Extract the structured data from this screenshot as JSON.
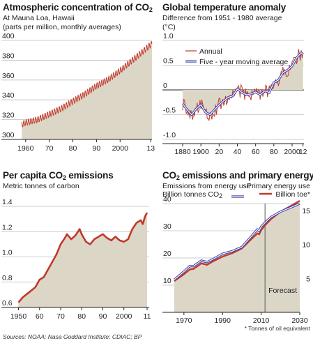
{
  "panels": {
    "co2": {
      "title": "Atmospheric concentration of CO",
      "title_sub": "2",
      "subtitle1": "At Mauna Loa, Hawaii",
      "subtitle2": "(parts per million, monthly averages)"
    },
    "temp": {
      "title": "Global temperature anomaly",
      "subtitle1": "Difference from 1951 - 1980 average",
      "subtitle2": "(°C)"
    },
    "percap": {
      "title_pre": "Per capita CO",
      "title_sub": "2",
      "title_post": " emissions",
      "subtitle1": "Metric tonnes of carbon"
    },
    "energy": {
      "title_pre": "CO",
      "title_sub": "2",
      "title_post": " emissions and primary energy",
      "left_label1": "Emissions from energy use",
      "left_label2": "Billion tonnes CO",
      "left_label2_sub": "2",
      "right_label1": "Primary energy use",
      "right_label2": "Billion toe*",
      "forecast_label": "Forecast",
      "footnote": "* Tonnes of oil equivalent"
    }
  },
  "footer": "Sources: NOAA; Nasa Goddard Institute; CDIAC; BP",
  "colors": {
    "red": "#c0392b",
    "blue": "#3a3fa8",
    "area": "#dcd6c7",
    "grid": "#bdbdbd"
  },
  "chart_data": [
    {
      "id": "co2",
      "type": "line",
      "title": "Atmospheric concentration of CO2",
      "ylabel": "parts per million, monthly averages",
      "xlim": [
        1958,
        2013.5
      ],
      "ylim": [
        300,
        400
      ],
      "yticks": [
        300,
        320,
        340,
        360,
        380,
        400
      ],
      "xticks": [
        1960,
        1970,
        1980,
        1990,
        2000,
        2013
      ],
      "xtick_labels": [
        "1960",
        "70",
        "80",
        "90",
        "2000",
        "13"
      ],
      "seasonal_amplitude": 3,
      "series": [
        {
          "x": [
            1958,
            1960,
            1965,
            1970,
            1975,
            1980,
            1985,
            1990,
            1995,
            2000,
            2005,
            2010,
            2013
          ],
          "values": [
            315,
            317,
            320,
            325.5,
            331,
            338.5,
            345.5,
            354,
            360.5,
            369.5,
            379.5,
            389.5,
            396
          ]
        }
      ]
    },
    {
      "id": "temp",
      "type": "line",
      "title": "Global temperature anomaly",
      "ylabel": "°C",
      "xlim": [
        1880,
        2013
      ],
      "ylim": [
        -1.0,
        1.0
      ],
      "yticks": [
        -1.0,
        -0.5,
        0,
        0.5,
        1.0
      ],
      "ytick_labels": [
        "-1.0",
        "-0.5",
        "0",
        "0.5",
        "1.0"
      ],
      "xticks": [
        1880,
        1900,
        1920,
        1940,
        1960,
        1980,
        2000,
        2012
      ],
      "xtick_labels": [
        "1880",
        "1900",
        "20",
        "40",
        "60",
        "80",
        "2000",
        "12"
      ],
      "series": [
        {
          "name": "Five - year moving average",
          "x": [
            1880,
            1885,
            1890,
            1895,
            1900,
            1905,
            1910,
            1915,
            1920,
            1925,
            1930,
            1935,
            1940,
            1945,
            1950,
            1955,
            1960,
            1965,
            1970,
            1975,
            1980,
            1985,
            1990,
            1995,
            2000,
            2005,
            2010,
            2012
          ],
          "values": [
            -0.28,
            -0.4,
            -0.5,
            -0.38,
            -0.3,
            -0.45,
            -0.5,
            -0.4,
            -0.3,
            -0.22,
            -0.15,
            -0.12,
            0.02,
            -0.05,
            -0.1,
            -0.08,
            -0.04,
            -0.1,
            -0.02,
            -0.05,
            0.15,
            0.2,
            0.35,
            0.4,
            0.48,
            0.65,
            0.75,
            0.72
          ]
        },
        {
          "name": "Annual",
          "derived_from": "Five - year moving average",
          "noise_amplitude": 0.14
        }
      ]
    },
    {
      "id": "percap",
      "type": "line",
      "title": "Per capita CO2 emissions",
      "ylabel": "Metric tonnes of carbon",
      "xlim": [
        1948.5,
        2012
      ],
      "ylim": [
        0.6,
        1.4
      ],
      "yticks": [
        0.6,
        0.8,
        1.0,
        1.2,
        1.4
      ],
      "ytick_labels": [
        "0.6",
        "0.8",
        "1.0",
        "1.2",
        "1.4"
      ],
      "xticks": [
        1950,
        1960,
        1970,
        1980,
        1990,
        2000,
        2011
      ],
      "xtick_labels": [
        "1950",
        "60",
        "70",
        "80",
        "90",
        "2000",
        "11"
      ],
      "series": [
        {
          "x": [
            1950,
            1952,
            1955,
            1958,
            1960,
            1962,
            1965,
            1968,
            1970,
            1972,
            1973,
            1975,
            1977,
            1979,
            1980,
            1982,
            1984,
            1986,
            1988,
            1990,
            1992,
            1994,
            1996,
            1998,
            2000,
            2002,
            2004,
            2006,
            2008,
            2009,
            2010,
            2011
          ],
          "values": [
            0.64,
            0.68,
            0.72,
            0.76,
            0.82,
            0.84,
            0.93,
            1.02,
            1.1,
            1.15,
            1.18,
            1.14,
            1.17,
            1.22,
            1.18,
            1.12,
            1.1,
            1.14,
            1.16,
            1.18,
            1.15,
            1.13,
            1.16,
            1.13,
            1.12,
            1.14,
            1.22,
            1.27,
            1.29,
            1.26,
            1.32,
            1.35
          ]
        }
      ]
    },
    {
      "id": "energy",
      "type": "line",
      "title": "CO2 emissions and primary energy",
      "xlim": [
        1965,
        2030
      ],
      "ylim_left": [
        0,
        40
      ],
      "ylim_right": [
        0,
        16
      ],
      "yticks_left": [
        10,
        20,
        30,
        40
      ],
      "yticks_right": [
        5,
        10,
        15
      ],
      "xticks": [
        1970,
        1990,
        2010,
        2030
      ],
      "xtick_labels": [
        "1970",
        "1990",
        "2010",
        "2030"
      ],
      "forecast_start": 2012,
      "series": [
        {
          "name": "Emissions from energy use, Billion tonnes CO2",
          "axis": "left",
          "x": [
            1965,
            1970,
            1973,
            1975,
            1979,
            1982,
            1985,
            1990,
            1995,
            2000,
            2005,
            2008,
            2009,
            2010,
            2012,
            2015,
            2020,
            2025,
            2030
          ],
          "values": [
            12,
            15,
            17,
            17,
            19,
            18.5,
            19.5,
            21.5,
            22.5,
            24,
            28,
            30.5,
            30,
            31.5,
            33,
            35,
            37,
            38.5,
            40
          ]
        },
        {
          "name": "Primary energy use, Billion toe*",
          "axis": "right",
          "x": [
            1965,
            1970,
            1973,
            1975,
            1979,
            1982,
            1985,
            1990,
            1995,
            2000,
            2005,
            2008,
            2009,
            2010,
            2012,
            2015,
            2020,
            2025,
            2030
          ],
          "values": [
            4.6,
            5.6,
            6.3,
            6.4,
            7.2,
            7.0,
            7.5,
            8.2,
            8.7,
            9.4,
            10.8,
            11.6,
            11.5,
            12.1,
            12.8,
            13.7,
            14.8,
            15.6,
            16.4
          ]
        }
      ]
    }
  ]
}
